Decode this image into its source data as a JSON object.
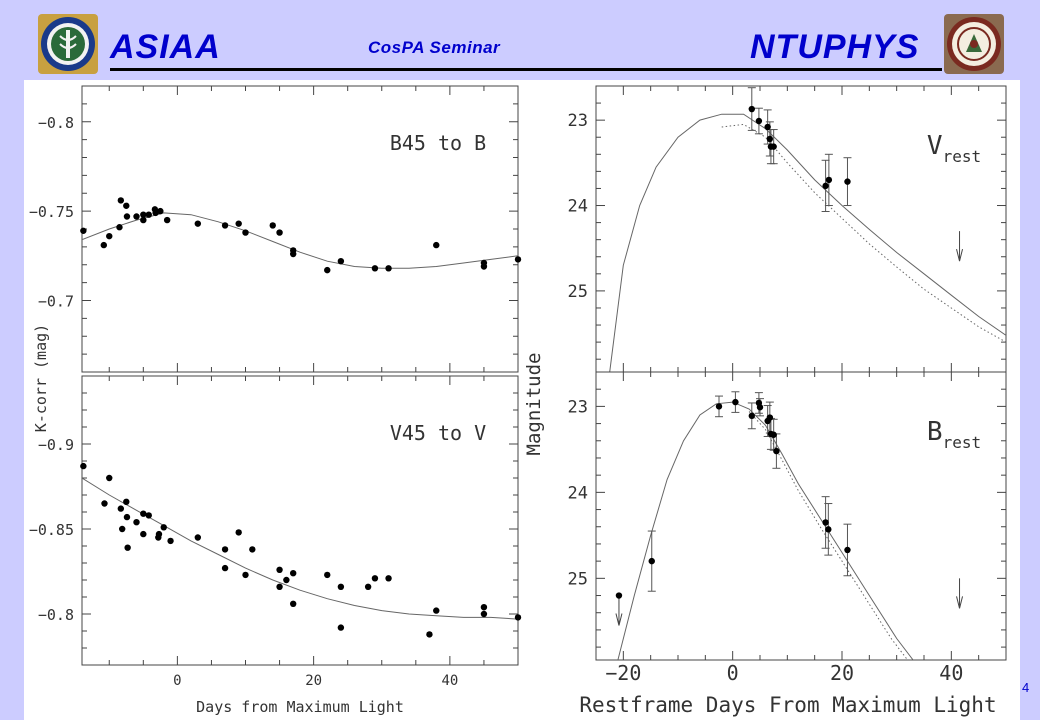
{
  "header": {
    "left_title": "ASIAA",
    "center_title": "CosPA  Seminar",
    "right_title": "NTUPHYS",
    "left_logo": "academia-sinica-seal-icon",
    "right_logo": "ntu-seal-icon",
    "title_color": "#0000cc",
    "background_color": "#ccccff"
  },
  "page_number": "4",
  "chart_data": [
    {
      "type": "scatter",
      "panel": "left-top",
      "annotation": "B45 to B",
      "ylabel": "K-corr (mag)",
      "xlim": [
        -14,
        50
      ],
      "ylim": [
        -0.82,
        -0.66
      ],
      "y_inverted": true,
      "yticks": [
        -0.8,
        -0.75,
        -0.7
      ],
      "ytick_labels": [
        "−0.8",
        "−0.75",
        "−0.7"
      ],
      "xticks": [
        0,
        20,
        40
      ],
      "points": [
        [
          -13.8,
          -0.739
        ],
        [
          -10.8,
          -0.731
        ],
        [
          -10,
          -0.736
        ],
        [
          -8.5,
          -0.741
        ],
        [
          -8.3,
          -0.756
        ],
        [
          -7.5,
          -0.753
        ],
        [
          -7.4,
          -0.747
        ],
        [
          -6,
          -0.747
        ],
        [
          -5,
          -0.748
        ],
        [
          -5,
          -0.745
        ],
        [
          -4.2,
          -0.748
        ],
        [
          -3.3,
          -0.751
        ],
        [
          -3.2,
          -0.749
        ],
        [
          -2.5,
          -0.75
        ],
        [
          -1.5,
          -0.745
        ],
        [
          3,
          -0.743
        ],
        [
          7,
          -0.742
        ],
        [
          9,
          -0.743
        ],
        [
          10,
          -0.738
        ],
        [
          14,
          -0.742
        ],
        [
          15,
          -0.738
        ],
        [
          17,
          -0.728
        ],
        [
          17,
          -0.726
        ],
        [
          22,
          -0.717
        ],
        [
          24,
          -0.722
        ],
        [
          29,
          -0.718
        ],
        [
          31,
          -0.718
        ],
        [
          38,
          -0.731
        ],
        [
          45,
          -0.721
        ],
        [
          45,
          -0.719
        ],
        [
          50,
          -0.723
        ]
      ],
      "curve": [
        [
          -14,
          -0.734
        ],
        [
          -10,
          -0.74
        ],
        [
          -6,
          -0.745
        ],
        [
          -2,
          -0.749
        ],
        [
          2,
          -0.748
        ],
        [
          6,
          -0.744
        ],
        [
          10,
          -0.739
        ],
        [
          14,
          -0.733
        ],
        [
          18,
          -0.727
        ],
        [
          22,
          -0.722
        ],
        [
          26,
          -0.719
        ],
        [
          30,
          -0.718
        ],
        [
          34,
          -0.718
        ],
        [
          38,
          -0.719
        ],
        [
          42,
          -0.721
        ],
        [
          46,
          -0.723
        ],
        [
          50,
          -0.725
        ]
      ]
    },
    {
      "type": "scatter",
      "panel": "left-bottom",
      "annotation": "V45 to V",
      "xlabel": "Days from Maximum Light",
      "xlim": [
        -14,
        50
      ],
      "ylim": [
        -0.94,
        -0.77
      ],
      "y_inverted": true,
      "yticks": [
        -0.9,
        -0.85,
        -0.8
      ],
      "ytick_labels": [
        "−0.9",
        "−0.85",
        "−0.8"
      ],
      "xticks": [
        0,
        20,
        40
      ],
      "xtick_labels": [
        "0",
        "20",
        "40"
      ],
      "points": [
        [
          -13.8,
          -0.887
        ],
        [
          -10.7,
          -0.865
        ],
        [
          -10,
          -0.88
        ],
        [
          -8.3,
          -0.862
        ],
        [
          -8.1,
          -0.85
        ],
        [
          -7.5,
          -0.866
        ],
        [
          -7.4,
          -0.857
        ],
        [
          -7.3,
          -0.839
        ],
        [
          -6,
          -0.854
        ],
        [
          -5,
          -0.859
        ],
        [
          -5,
          -0.847
        ],
        [
          -4.2,
          -0.858
        ],
        [
          -2.8,
          -0.845
        ],
        [
          -2.7,
          -0.847
        ],
        [
          -2,
          -0.851
        ],
        [
          -1,
          -0.843
        ],
        [
          3,
          -0.845
        ],
        [
          7,
          -0.838
        ],
        [
          7,
          -0.827
        ],
        [
          9,
          -0.848
        ],
        [
          10,
          -0.823
        ],
        [
          11,
          -0.838
        ],
        [
          15,
          -0.826
        ],
        [
          15,
          -0.816
        ],
        [
          16,
          -0.82
        ],
        [
          17,
          -0.824
        ],
        [
          17,
          -0.806
        ],
        [
          22,
          -0.823
        ],
        [
          24,
          -0.816
        ],
        [
          24,
          -0.792
        ],
        [
          28,
          -0.816
        ],
        [
          29,
          -0.821
        ],
        [
          31,
          -0.821
        ],
        [
          37,
          -0.788
        ],
        [
          38,
          -0.802
        ],
        [
          45,
          -0.804
        ],
        [
          45,
          -0.8
        ],
        [
          50,
          -0.798
        ]
      ],
      "curve": [
        [
          -14,
          -0.88
        ],
        [
          -10,
          -0.87
        ],
        [
          -6,
          -0.861
        ],
        [
          -2,
          -0.852
        ],
        [
          2,
          -0.843
        ],
        [
          6,
          -0.835
        ],
        [
          10,
          -0.827
        ],
        [
          14,
          -0.82
        ],
        [
          18,
          -0.814
        ],
        [
          22,
          -0.809
        ],
        [
          26,
          -0.805
        ],
        [
          30,
          -0.802
        ],
        [
          34,
          -0.8
        ],
        [
          38,
          -0.799
        ],
        [
          42,
          -0.798
        ],
        [
          46,
          -0.798
        ],
        [
          50,
          -0.797
        ]
      ]
    },
    {
      "type": "line",
      "panel": "right-top",
      "annotation": "V",
      "annotation_sub": "rest",
      "ylabel": "Magnitude",
      "xlim": [
        -25,
        50
      ],
      "ylim": [
        22.6,
        25.95
      ],
      "y_inverted": true,
      "yticks": [
        23,
        24,
        25
      ],
      "ytick_labels": [
        "23",
        "24",
        "25"
      ],
      "xticks": [
        -20,
        0,
        20,
        40
      ],
      "points": [
        [
          3.5,
          22.87
        ],
        [
          4.8,
          23.01
        ],
        [
          6.4,
          23.08
        ],
        [
          6.8,
          23.22
        ],
        [
          7,
          23.31
        ],
        [
          7.5,
          23.31
        ],
        [
          17,
          23.77
        ],
        [
          17.6,
          23.7
        ],
        [
          21,
          23.72
        ]
      ],
      "errors": [
        0.25,
        0.15,
        0.2,
        0.2,
        0.2,
        0.2,
        0.3,
        0.3,
        0.28
      ],
      "upper_limits": [
        [
          41.5,
          24.3
        ]
      ],
      "solid_curve": [
        [
          -22.5,
          25.95
        ],
        [
          -20,
          24.7
        ],
        [
          -17,
          24.0
        ],
        [
          -14,
          23.55
        ],
        [
          -10,
          23.2
        ],
        [
          -6,
          23.0
        ],
        [
          -2,
          22.93
        ],
        [
          2,
          22.93
        ],
        [
          6,
          23.1
        ],
        [
          10,
          23.35
        ],
        [
          15,
          23.7
        ],
        [
          20,
          24.0
        ],
        [
          25,
          24.28
        ],
        [
          30,
          24.55
        ],
        [
          35,
          24.8
        ],
        [
          40,
          25.05
        ],
        [
          45,
          25.3
        ],
        [
          50,
          25.52
        ]
      ],
      "dotted_curve": [
        [
          -2,
          23.08
        ],
        [
          2,
          23.05
        ],
        [
          6,
          23.2
        ],
        [
          10,
          23.5
        ],
        [
          15,
          23.85
        ],
        [
          20,
          24.15
        ],
        [
          25,
          24.45
        ],
        [
          30,
          24.72
        ],
        [
          35,
          24.98
        ],
        [
          40,
          25.2
        ],
        [
          45,
          25.42
        ],
        [
          50,
          25.6
        ]
      ]
    },
    {
      "type": "line",
      "panel": "right-bottom",
      "annotation": "B",
      "annotation_sub": "rest",
      "xlabel": "Restframe Days From Maximum Light",
      "xlim": [
        -25,
        50
      ],
      "ylim": [
        22.6,
        25.95
      ],
      "y_inverted": true,
      "yticks": [
        23,
        24,
        25
      ],
      "ytick_labels": [
        "23",
        "24",
        "25"
      ],
      "xticks": [
        -20,
        0,
        20,
        40
      ],
      "xtick_labels": [
        "−20",
        "0",
        "20",
        "40"
      ],
      "points": [
        [
          -20.8,
          25.2
        ],
        [
          -14.8,
          24.8
        ],
        [
          -2.5,
          23.0
        ],
        [
          0.5,
          22.95
        ],
        [
          3.5,
          23.11
        ],
        [
          4.8,
          22.96
        ],
        [
          5,
          23.01
        ],
        [
          6.4,
          23.17
        ],
        [
          6.8,
          23.13
        ],
        [
          7,
          23.32
        ],
        [
          7.5,
          23.33
        ],
        [
          8,
          23.52
        ],
        [
          17,
          24.35
        ],
        [
          17.5,
          24.43
        ],
        [
          21,
          24.67
        ]
      ],
      "errors": [
        0,
        0.35,
        0.12,
        0.12,
        0.15,
        0.12,
        0.1,
        0.18,
        0.18,
        0.18,
        0.18,
        0.2,
        0.3,
        0.3,
        0.3
      ],
      "upper_limits": [
        [
          -20.8,
          25.2
        ],
        [
          41.5,
          25.0
        ]
      ],
      "solid_curve": [
        [
          -21,
          25.95
        ],
        [
          -18,
          25.2
        ],
        [
          -15,
          24.5
        ],
        [
          -12,
          23.85
        ],
        [
          -9,
          23.4
        ],
        [
          -6,
          23.1
        ],
        [
          -3,
          22.97
        ],
        [
          0,
          22.95
        ],
        [
          3,
          23.03
        ],
        [
          6,
          23.22
        ],
        [
          9,
          23.55
        ],
        [
          12,
          23.9
        ],
        [
          16,
          24.3
        ],
        [
          20,
          24.7
        ],
        [
          25,
          25.2
        ],
        [
          30,
          25.7
        ],
        [
          33,
          25.95
        ]
      ],
      "dotted_curve": [
        [
          3,
          23.06
        ],
        [
          6,
          23.27
        ],
        [
          9,
          23.62
        ],
        [
          12,
          23.98
        ],
        [
          16,
          24.4
        ],
        [
          20,
          24.8
        ],
        [
          25,
          25.3
        ],
        [
          29,
          25.7
        ],
        [
          32,
          25.95
        ]
      ]
    }
  ]
}
